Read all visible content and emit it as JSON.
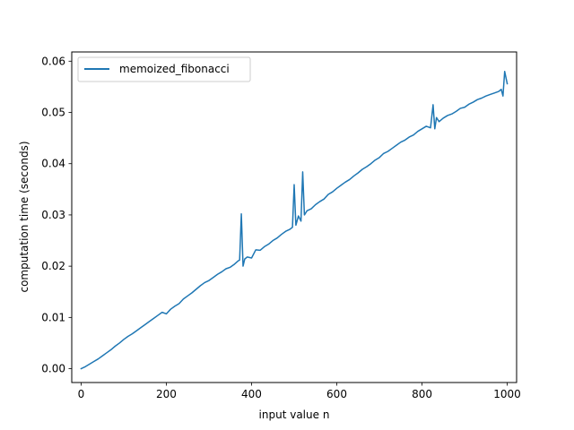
{
  "chart_data": {
    "type": "line",
    "title": "",
    "xlabel": "input value n",
    "ylabel": "computation time (seconds)",
    "xlim": [
      -22,
      1022
    ],
    "ylim": [
      -0.0027,
      0.0618
    ],
    "xticks": [
      0,
      200,
      400,
      600,
      800,
      1000
    ],
    "yticks": [
      0.0,
      0.01,
      0.02,
      0.03,
      0.04,
      0.05,
      0.06
    ],
    "xtick_labels": [
      "0",
      "200",
      "400",
      "600",
      "800",
      "1000"
    ],
    "ytick_labels": [
      "0.00",
      "0.01",
      "0.02",
      "0.03",
      "0.04",
      "0.05",
      "0.06"
    ],
    "grid": false,
    "legend_position": "top-left",
    "line_color": "#1f77b4",
    "series": [
      {
        "name": "memoized_fibonacci",
        "x": [
          0,
          10,
          20,
          30,
          40,
          50,
          60,
          70,
          80,
          90,
          100,
          110,
          120,
          130,
          140,
          150,
          160,
          170,
          180,
          190,
          200,
          210,
          220,
          230,
          240,
          250,
          260,
          270,
          280,
          290,
          300,
          310,
          320,
          330,
          340,
          350,
          360,
          368,
          372,
          376,
          380,
          384,
          390,
          400,
          410,
          420,
          430,
          440,
          450,
          460,
          470,
          480,
          490,
          496,
          500,
          504,
          510,
          516,
          520,
          524,
          530,
          540,
          550,
          560,
          570,
          580,
          590,
          600,
          610,
          620,
          630,
          640,
          650,
          660,
          670,
          680,
          690,
          700,
          710,
          720,
          730,
          740,
          750,
          760,
          770,
          780,
          790,
          800,
          810,
          820,
          826,
          830,
          834,
          840,
          850,
          860,
          870,
          880,
          890,
          900,
          910,
          920,
          930,
          940,
          950,
          960,
          970,
          980,
          986,
          990,
          994,
          1000
        ],
        "y": [
          0.0,
          0.0004,
          0.0009,
          0.0014,
          0.0019,
          0.0025,
          0.0031,
          0.0037,
          0.0044,
          0.005,
          0.0057,
          0.0063,
          0.0068,
          0.0074,
          0.008,
          0.0086,
          0.0092,
          0.0098,
          0.0104,
          0.011,
          0.0107,
          0.0116,
          0.0122,
          0.0127,
          0.0136,
          0.0142,
          0.0148,
          0.0155,
          0.0162,
          0.0168,
          0.0172,
          0.0178,
          0.0184,
          0.0189,
          0.0195,
          0.0198,
          0.0204,
          0.021,
          0.0212,
          0.0302,
          0.02,
          0.0214,
          0.0218,
          0.0216,
          0.0232,
          0.0231,
          0.0238,
          0.0243,
          0.025,
          0.0255,
          0.0262,
          0.0268,
          0.0272,
          0.0276,
          0.0359,
          0.028,
          0.0298,
          0.0288,
          0.0384,
          0.03,
          0.0308,
          0.0312,
          0.032,
          0.0326,
          0.0331,
          0.034,
          0.0345,
          0.0352,
          0.0358,
          0.0364,
          0.0369,
          0.0376,
          0.0382,
          0.0389,
          0.0394,
          0.04,
          0.0407,
          0.0412,
          0.042,
          0.0424,
          0.043,
          0.0436,
          0.0442,
          0.0446,
          0.0452,
          0.0456,
          0.0463,
          0.0468,
          0.0473,
          0.047,
          0.0515,
          0.0468,
          0.049,
          0.0482,
          0.0489,
          0.0494,
          0.0497,
          0.0502,
          0.0508,
          0.051,
          0.0516,
          0.052,
          0.0525,
          0.0528,
          0.0532,
          0.0535,
          0.0538,
          0.0541,
          0.0545,
          0.0532,
          0.058,
          0.0556
        ]
      }
    ]
  }
}
